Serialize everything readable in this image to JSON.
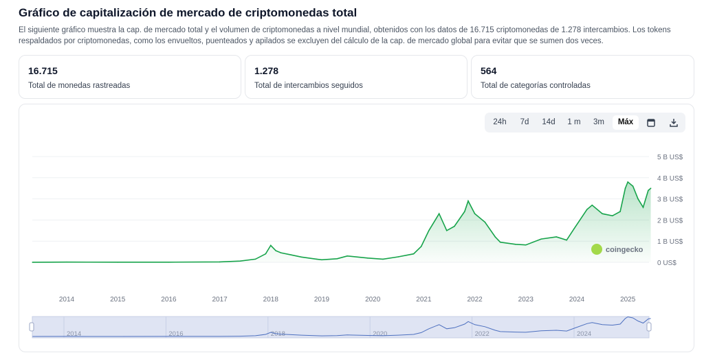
{
  "title": "Gráfico de capitalización de mercado de criptomonedas total",
  "description": "El siguiente gráfico muestra la cap. de mercado total y el volumen de criptomonedas a nivel mundial, obtenidos con los datos de 16.715 criptomonedas de 1.278 intercambios. Los tokens respaldados por criptomonedas, como los envueltos, puenteados y apilados se excluyen del cálculo de la cap. de mercado global para evitar que se sumen dos veces.",
  "stats": [
    {
      "value": "16.715",
      "label": "Total de monedas rastreadas"
    },
    {
      "value": "1.278",
      "label": "Total de intercambios seguidos"
    },
    {
      "value": "564",
      "label": "Total de categorías controladas"
    }
  ],
  "range_tabs": [
    "24h",
    "7d",
    "14d",
    "1 m",
    "3m",
    "Máx"
  ],
  "active_tab": "Máx",
  "icons": [
    "calendar-icon",
    "download-icon"
  ],
  "watermark": "coingecko",
  "colors": {
    "line": "#16a34a",
    "navigator": "#4c6fbf"
  },
  "chart_data": {
    "type": "area",
    "xlabel": "",
    "ylabel": "",
    "y_ticks": [
      "0 US$",
      "1 B US$",
      "2 B US$",
      "3 B US$",
      "4 B US$",
      "5 B US$"
    ],
    "ylim": [
      0,
      5
    ],
    "x_ticks": [
      "2014",
      "2015",
      "2016",
      "2017",
      "2018",
      "2019",
      "2020",
      "2021",
      "2022",
      "2023",
      "2024",
      "2025"
    ],
    "navigator_ticks": [
      "2014",
      "2016",
      "2018",
      "2020",
      "2022",
      "2024"
    ],
    "grid": true,
    "series": [
      {
        "x": [
          2013.33,
          2014,
          2015,
          2016,
          2017,
          2017.4,
          2017.7,
          2017.9,
          2018.0,
          2018.1,
          2018.2,
          2018.4,
          2018.6,
          2018.9,
          2019.0,
          2019.3,
          2019.5,
          2019.9,
          2020.2,
          2020.5,
          2020.8,
          2020.95,
          2021.1,
          2021.3,
          2021.45,
          2021.6,
          2021.8,
          2021.87,
          2022.0,
          2022.2,
          2022.4,
          2022.5,
          2022.8,
          2023.0,
          2023.3,
          2023.6,
          2023.8,
          2023.95,
          2024.2,
          2024.3,
          2024.5,
          2024.7,
          2024.85,
          2024.95,
          2025.0,
          2025.1,
          2025.2,
          2025.3,
          2025.4,
          2025.45
        ],
        "y": [
          0.002,
          0.01,
          0.005,
          0.007,
          0.018,
          0.06,
          0.15,
          0.4,
          0.8,
          0.55,
          0.45,
          0.35,
          0.25,
          0.15,
          0.12,
          0.17,
          0.3,
          0.2,
          0.15,
          0.26,
          0.4,
          0.75,
          1.5,
          2.3,
          1.5,
          1.7,
          2.4,
          2.9,
          2.3,
          1.9,
          1.2,
          0.95,
          0.85,
          0.82,
          1.1,
          1.2,
          1.05,
          1.6,
          2.5,
          2.7,
          2.3,
          2.2,
          2.4,
          3.5,
          3.8,
          3.6,
          3.0,
          2.6,
          3.4,
          3.5
        ]
      }
    ]
  }
}
